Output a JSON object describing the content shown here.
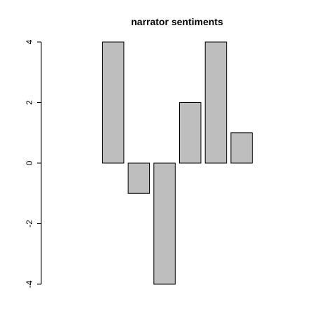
{
  "chart_data": {
    "type": "bar",
    "title": "narrator sentiments",
    "xlabel": "",
    "ylabel": "",
    "categories": [
      "",
      "",
      "",
      "",
      "",
      "",
      "",
      "",
      "",
      ""
    ],
    "values": [
      0,
      0,
      4,
      -1,
      -4,
      2,
      4,
      1,
      0,
      0
    ],
    "ylim": [
      -4,
      4
    ],
    "yticks": [
      -4,
      -2,
      0,
      2,
      4
    ],
    "ytick_labels": [
      "-4",
      "-2",
      "0",
      "2",
      "4"
    ],
    "bar_color": "#bebebe",
    "grid": false
  }
}
